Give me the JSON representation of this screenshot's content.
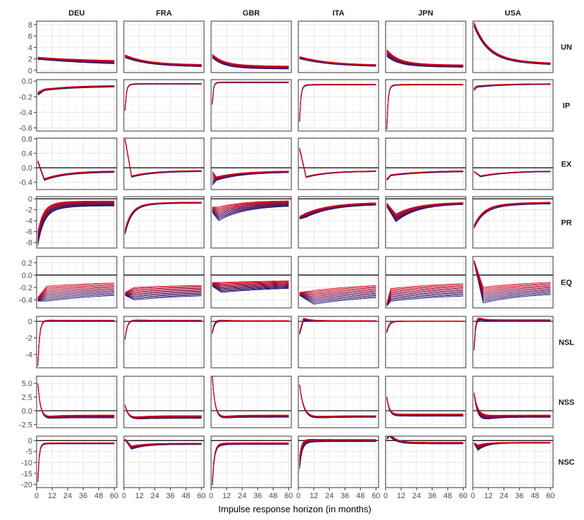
{
  "chart_data": {
    "type": "line",
    "title": "",
    "xlabel": "Impulse response horizon (in months)",
    "ylabel": "",
    "xlim": [
      0,
      62
    ],
    "x_ticks": [
      0,
      12,
      24,
      36,
      48,
      60
    ],
    "x_tick_labels": [
      "0",
      "12",
      "24",
      "36",
      "48",
      "60"
    ],
    "columns": [
      "DEU",
      "FRA",
      "GBR",
      "ITA",
      "JPN",
      "USA"
    ],
    "rows": [
      {
        "name": "UN",
        "ylim": [
          -0.4,
          8.6
        ],
        "ticks": [
          0,
          2,
          4,
          6,
          8
        ],
        "tick_labels": [
          "0",
          "2",
          "4",
          "6",
          "8"
        ],
        "zero_line": false
      },
      {
        "name": "IP",
        "ylim": [
          -0.64,
          0.02
        ],
        "ticks": [
          0,
          -0.2,
          -0.4,
          -0.6
        ],
        "tick_labels": [
          "0.0",
          "-0.2",
          "-0.4",
          "-0.6"
        ],
        "zero_line": false
      },
      {
        "name": "EX",
        "ylim": [
          -0.6,
          0.82
        ],
        "ticks": [
          0.8,
          0.4,
          0,
          -0.4
        ],
        "tick_labels": [
          "0.8",
          "0.4",
          "0.0",
          "-0.4"
        ],
        "zero_line": true
      },
      {
        "name": "PR",
        "ylim": [
          -9,
          0.4
        ],
        "ticks": [
          0,
          -2,
          -4,
          -6,
          -8
        ],
        "tick_labels": [
          "0",
          "-2",
          "-4",
          "-6",
          "-8"
        ],
        "zero_line": true
      },
      {
        "name": "EQ",
        "ylim": [
          -0.53,
          0.3
        ],
        "ticks": [
          0.2,
          0,
          -0.2,
          -0.4
        ],
        "tick_labels": [
          "0.2",
          "0.0",
          "-0.2",
          "-0.4"
        ],
        "zero_line": true
      },
      {
        "name": "NSL",
        "ylim": [
          -5.6,
          0.6
        ],
        "ticks": [
          0,
          -2,
          -4
        ],
        "tick_labels": [
          "0",
          "-2",
          "-4"
        ],
        "zero_line": true
      },
      {
        "name": "NSS",
        "ylim": [
          -3.1,
          6.3
        ],
        "ticks": [
          5,
          2.5,
          0,
          -2.5
        ],
        "tick_labels": [
          "5.0",
          "2.5",
          "0.0",
          "-2.5"
        ],
        "zero_line": true
      },
      {
        "name": "NSC",
        "ylim": [
          -21.5,
          2
        ],
        "ticks": [
          0,
          -5,
          -10,
          -15,
          -20
        ],
        "tick_labels": [
          "0",
          "-5",
          "-10",
          "-15",
          "-20"
        ],
        "zero_line": true
      }
    ],
    "series_colors": {
      "first_draw": "#1a1a7a",
      "last_draw": "#e00010"
    },
    "draws_per_panel": 12,
    "panels": {
      "UN": {
        "DEU": {
          "start": [
            1.9,
            2.3
          ],
          "mid": [
            1.4,
            1.8
          ],
          "end": [
            0.7,
            1.5
          ],
          "k": 0.012,
          "peak_t": 0
        },
        "FRA": {
          "start": [
            2.2,
            2.7
          ],
          "mid": [
            1.3,
            1.6
          ],
          "end": [
            0.5,
            0.9
          ],
          "k": 0.03,
          "peak_t": 0
        },
        "GBR": {
          "start": [
            2.2,
            2.8
          ],
          "mid": [
            0.8,
            1.4
          ],
          "end": [
            0.2,
            0.7
          ],
          "k": 0.05,
          "peak_t": 0
        },
        "ITA": {
          "start": [
            2.0,
            2.4
          ],
          "mid": [
            1.3,
            1.6
          ],
          "end": [
            0.5,
            0.8
          ],
          "k": 0.025,
          "peak_t": 0
        },
        "JPN": {
          "start": [
            2.4,
            3.6
          ],
          "mid": [
            1.2,
            1.8
          ],
          "end": [
            0.5,
            0.9
          ],
          "k": 0.05,
          "peak_t": 0
        },
        "USA": {
          "start": [
            7.6,
            8.4
          ],
          "mid": [
            3.0,
            3.4
          ],
          "end": [
            0.8,
            1.1
          ],
          "k": 0.04,
          "peak_t": 0
        }
      },
      "IP": {
        "DEU": {
          "start": [
            -0.18,
            -0.14
          ],
          "mid": [
            -0.12,
            -0.1
          ],
          "end": [
            -0.07,
            -0.05
          ],
          "k": 0.04,
          "peak_t": 6
        },
        "FRA": {
          "start": [
            -0.38,
            -0.34
          ],
          "mid": [
            -0.08,
            -0.07
          ],
          "end": [
            -0.04,
            -0.03
          ],
          "k": 0.4,
          "peak_t": 1
        },
        "GBR": {
          "start": [
            -0.3,
            -0.26
          ],
          "mid": [
            -0.05,
            -0.04
          ],
          "end": [
            -0.02,
            -0.01
          ],
          "k": 0.5,
          "peak_t": 1
        },
        "ITA": {
          "start": [
            -0.52,
            -0.48
          ],
          "mid": [
            -0.11,
            -0.09
          ],
          "end": [
            -0.05,
            -0.04
          ],
          "k": 0.4,
          "peak_t": 1
        },
        "JPN": {
          "start": [
            -0.62,
            -0.58
          ],
          "mid": [
            -0.12,
            -0.1
          ],
          "end": [
            -0.05,
            -0.04
          ],
          "k": 0.4,
          "peak_t": 1
        },
        "USA": {
          "start": [
            -0.12,
            -0.09
          ],
          "mid": [
            -0.08,
            -0.06
          ],
          "end": [
            -0.04,
            -0.03
          ],
          "k": 0.05,
          "peak_t": 3
        }
      },
      "EX": {
        "DEU": {
          "start": [
            0.15,
            0.2
          ],
          "mid": [
            -0.35,
            -0.3
          ],
          "end": [
            -0.12,
            -0.08
          ],
          "k": 0.06,
          "peak_t": 6
        },
        "FRA": {
          "start": [
            0.76,
            0.8
          ],
          "mid": [
            -0.26,
            -0.22
          ],
          "end": [
            -0.1,
            -0.07
          ],
          "k": 0.06,
          "peak_t": 6
        },
        "GBR": {
          "start": [
            -0.48,
            -0.1
          ],
          "mid": [
            -0.35,
            -0.25
          ],
          "end": [
            -0.12,
            -0.08
          ],
          "k": 0.05,
          "peak_t": 4
        },
        "ITA": {
          "start": [
            0.5,
            0.55
          ],
          "mid": [
            -0.27,
            -0.24
          ],
          "end": [
            -0.1,
            -0.08
          ],
          "k": 0.06,
          "peak_t": 6
        },
        "JPN": {
          "start": [
            -0.35,
            -0.3
          ],
          "mid": [
            -0.22,
            -0.19
          ],
          "end": [
            -0.1,
            -0.07
          ],
          "k": 0.04,
          "peak_t": 4
        },
        "USA": {
          "start": [
            -0.12,
            -0.1
          ],
          "mid": [
            -0.25,
            -0.22
          ],
          "end": [
            -0.1,
            -0.08
          ],
          "k": 0.05,
          "peak_t": 6
        }
      },
      "PR": {
        "DEU": {
          "start": [
            -8.5,
            -6
          ],
          "mid": [
            -3.5,
            -1.5
          ],
          "end": [
            -1.3,
            -0.4
          ],
          "k": 0.09,
          "peak_t": 1
        },
        "FRA": {
          "start": [
            -6.5,
            -5.5
          ],
          "mid": [
            -2.2,
            -1.8
          ],
          "end": [
            -0.8,
            -0.6
          ],
          "k": 0.08,
          "peak_t": 1
        },
        "GBR": {
          "start": [
            -2.5,
            -1.5
          ],
          "mid": [
            -4.0,
            -1.5
          ],
          "end": [
            -1.2,
            -0.3
          ],
          "k": 0.05,
          "peak_t": 6
        },
        "ITA": {
          "start": [
            -3.7,
            -3.2
          ],
          "mid": [
            -3.4,
            -2.6
          ],
          "end": [
            -1.0,
            -0.6
          ],
          "k": 0.05,
          "peak_t": 6
        },
        "JPN": {
          "start": [
            -1.5,
            -0.8
          ],
          "mid": [
            -4.2,
            -2.8
          ],
          "end": [
            -0.9,
            -0.6
          ],
          "k": 0.06,
          "peak_t": 8
        },
        "USA": {
          "start": [
            -5.4,
            -4.8
          ],
          "mid": [
            -2.6,
            -2.0
          ],
          "end": [
            -0.9,
            -0.6
          ],
          "k": 0.06,
          "peak_t": 1
        }
      },
      "EQ": {
        "DEU": {
          "start": [
            -0.42,
            -0.36
          ],
          "mid": [
            -0.42,
            -0.18
          ],
          "end": [
            -0.28,
            -0.1
          ],
          "k": 0.02,
          "peak_t": 8
        },
        "FRA": {
          "start": [
            -0.33,
            -0.28
          ],
          "mid": [
            -0.4,
            -0.2
          ],
          "end": [
            -0.3,
            -0.15
          ],
          "k": 0.02,
          "peak_t": 8
        },
        "GBR": {
          "start": [
            -0.18,
            -0.12
          ],
          "mid": [
            -0.28,
            -0.12
          ],
          "end": [
            -0.18,
            -0.08
          ],
          "k": 0.02,
          "peak_t": 8
        },
        "ITA": {
          "start": [
            -0.33,
            -0.28
          ],
          "mid": [
            -0.47,
            -0.25
          ],
          "end": [
            -0.3,
            -0.12
          ],
          "k": 0.02,
          "peak_t": 12
        },
        "JPN": {
          "start": [
            -0.5,
            -0.45
          ],
          "mid": [
            -0.42,
            -0.22
          ],
          "end": [
            -0.3,
            -0.1
          ],
          "k": 0.02,
          "peak_t": 4
        },
        "USA": {
          "start": [
            0.2,
            0.24
          ],
          "mid": [
            -0.45,
            -0.2
          ],
          "end": [
            -0.28,
            -0.1
          ],
          "k": 0.03,
          "peak_t": 8
        }
      },
      "NSL": {
        "DEU": {
          "start": [
            -5.4,
            -5.0
          ],
          "mid": [
            0.1,
            0.25
          ],
          "end": [
            0.05,
            0.15
          ],
          "k": 0.25,
          "peak_t": 1
        },
        "FRA": {
          "start": [
            -2.2,
            -2.0
          ],
          "mid": [
            0.15,
            0.3
          ],
          "end": [
            0.05,
            0.15
          ],
          "k": 0.2,
          "peak_t": 1
        },
        "GBR": {
          "start": [
            -1.5,
            -1.2
          ],
          "mid": [
            0.1,
            0.4
          ],
          "end": [
            0.0,
            0.1
          ],
          "k": 0.2,
          "peak_t": 1
        },
        "ITA": {
          "start": [
            -1.6,
            -1.2
          ],
          "mid": [
            0.1,
            0.4
          ],
          "end": [
            0.0,
            0.1
          ],
          "k": 0.18,
          "peak_t": 4
        },
        "JPN": {
          "start": [
            -1.4,
            -1.1
          ],
          "mid": [
            -0.15,
            0.05
          ],
          "end": [
            0.0,
            0.05
          ],
          "k": 0.2,
          "peak_t": 1
        },
        "USA": {
          "start": [
            -3.5,
            -3.0
          ],
          "mid": [
            0.6,
            1.2
          ],
          "end": [
            0.05,
            0.2
          ],
          "k": 0.3,
          "peak_t": 1
        }
      },
      "NSS": {
        "DEU": {
          "start": [
            4.8,
            5.0
          ],
          "mid": [
            -2.0,
            -1.8
          ],
          "end": [
            -1.3,
            -0.8
          ],
          "k": 0.15,
          "peak_t": 1
        },
        "FRA": {
          "start": [
            0.9,
            1.1
          ],
          "mid": [
            -1.9,
            -1.7
          ],
          "end": [
            -1.4,
            -0.9
          ],
          "k": 0.12,
          "peak_t": 1
        },
        "GBR": {
          "start": [
            6.1,
            6.3
          ],
          "mid": [
            -2.1,
            -1.9
          ],
          "end": [
            -1.2,
            -0.8
          ],
          "k": 0.15,
          "peak_t": 1
        },
        "ITA": {
          "start": [
            4.6,
            4.8
          ],
          "mid": [
            -2.0,
            -1.6
          ],
          "end": [
            -1.2,
            -0.9
          ],
          "k": 0.1,
          "peak_t": 1
        },
        "JPN": {
          "start": [
            2.3,
            2.6
          ],
          "mid": [
            -0.9,
            -0.6
          ],
          "end": [
            -1.0,
            -0.6
          ],
          "k": 0.18,
          "peak_t": 1
        },
        "USA": {
          "start": [
            3.0,
            3.3
          ],
          "mid": [
            -2.6,
            -1.0
          ],
          "end": [
            -1.2,
            -0.8
          ],
          "k": 0.12,
          "peak_t": 1
        }
      },
      "NSC": {
        "DEU": {
          "start": [
            -19,
            -17
          ],
          "mid": [
            -2.5,
            -1.8
          ],
          "end": [
            -1.5,
            -1.0
          ],
          "k": 0.35,
          "peak_t": 1
        },
        "FRA": {
          "start": [
            0.2,
            0.8
          ],
          "mid": [
            -4.0,
            -2.5
          ],
          "end": [
            -1.8,
            -1.2
          ],
          "k": 0.1,
          "peak_t": 6
        },
        "GBR": {
          "start": [
            -20.5,
            -18.5
          ],
          "mid": [
            -4.0,
            -2.5
          ],
          "end": [
            -1.8,
            -1.0
          ],
          "k": 0.25,
          "peak_t": 1
        },
        "ITA": {
          "start": [
            -13,
            -7
          ],
          "mid": [
            -2.0,
            1.0
          ],
          "end": [
            -0.5,
            0.5
          ],
          "k": 0.2,
          "peak_t": 1
        },
        "JPN": {
          "start": [
            0.5,
            1.0
          ],
          "mid": [
            2.0,
            3.5
          ],
          "end": [
            -1.5,
            -0.8
          ],
          "k": 0.2,
          "peak_t": 3
        },
        "USA": {
          "start": [
            -1.5,
            -1.0
          ],
          "mid": [
            -4.5,
            -2.0
          ],
          "end": [
            -1.2,
            -0.8
          ],
          "k": 0.15,
          "peak_t": 4
        }
      }
    }
  }
}
